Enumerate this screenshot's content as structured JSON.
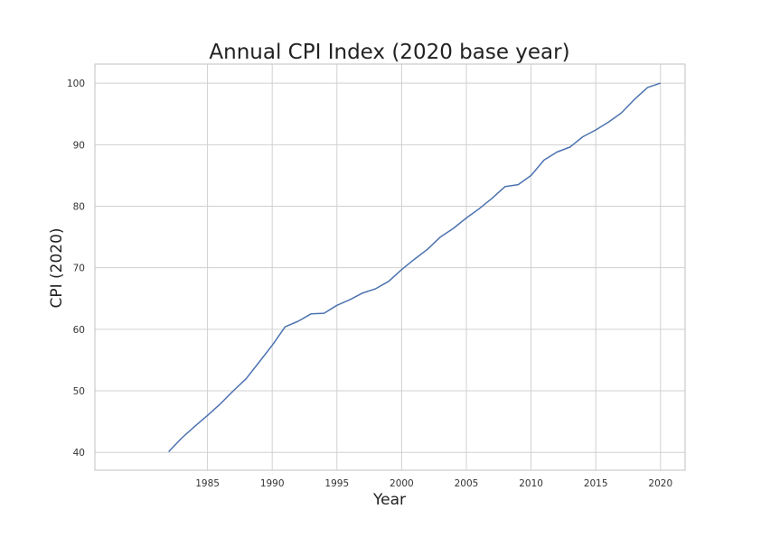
{
  "chart_data": {
    "type": "line",
    "title": "Annual CPI Index (2020 base year)",
    "xlabel": "Year",
    "ylabel": "CPI (2020)",
    "xlim": [
      1976.3,
      2021.9
    ],
    "ylim": [
      37.1,
      103.1
    ],
    "xticks": [
      1985,
      1990,
      1995,
      2000,
      2005,
      2010,
      2015,
      2020
    ],
    "yticks": [
      40,
      50,
      60,
      70,
      80,
      90,
      100
    ],
    "grid": true,
    "line_color": "#4c72b0",
    "series": [
      {
        "x": [
          1982,
          1983,
          1984,
          1985,
          1986,
          1987,
          1988,
          1989,
          1990,
          1991,
          1992,
          1993,
          1994,
          1995,
          1996,
          1997,
          1998,
          1999,
          2000,
          2001,
          2002,
          2003,
          2004,
          2005,
          2006,
          2007,
          2008,
          2009,
          2010,
          2011,
          2012,
          2013,
          2014,
          2015,
          2016,
          2017,
          2018,
          2019,
          2020
        ],
        "values": [
          40.1,
          42.3,
          44.2,
          46.0,
          47.9,
          50.0,
          52.0,
          54.7,
          57.4,
          60.4,
          61.3,
          62.5,
          62.6,
          63.9,
          64.8,
          65.9,
          66.6,
          67.8,
          69.7,
          71.4,
          73.0,
          75.0,
          76.4,
          78.1,
          79.6,
          81.3,
          83.2,
          83.5,
          85.0,
          87.5,
          88.8,
          89.6,
          91.3,
          92.4,
          93.7,
          95.2,
          97.4,
          99.3,
          100.0
        ]
      }
    ]
  }
}
